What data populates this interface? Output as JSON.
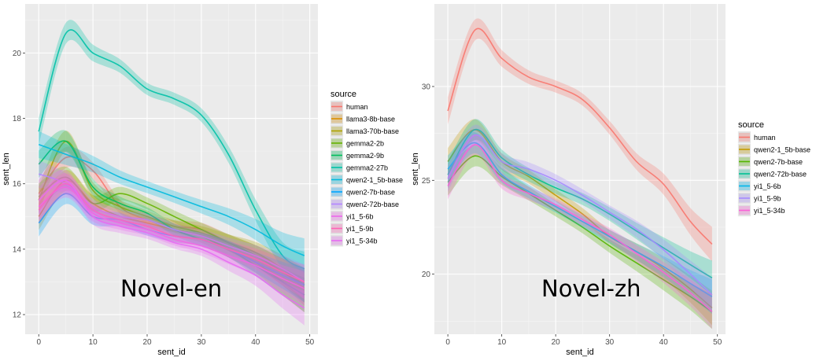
{
  "chart_data": [
    {
      "type": "line",
      "title": "",
      "overlay_label": "Novel-en",
      "xlabel": "sent_id",
      "ylabel": "sent_len",
      "xlim": [
        -2.5,
        51.5
      ],
      "ylim": [
        11.4,
        21.5
      ],
      "x_ticks": [
        0,
        10,
        20,
        30,
        40,
        50
      ],
      "y_ticks": [
        12,
        14,
        16,
        18,
        20
      ],
      "grid": true,
      "legend_title": "source",
      "legend_position": "right",
      "x": [
        0,
        5,
        10,
        15,
        20,
        25,
        30,
        35,
        40,
        45,
        49
      ],
      "series": [
        {
          "name": "human",
          "color": "#F8766D",
          "values": [
            15.7,
            16.8,
            16.4,
            15.3,
            14.9,
            14.7,
            14.6,
            14.2,
            13.8,
            13.3,
            12.8
          ]
        },
        {
          "name": "llama3-8b-base",
          "color": "#DB8E00",
          "values": [
            15.0,
            16.1,
            15.4,
            15.0,
            14.8,
            14.6,
            14.4,
            14.0,
            13.6,
            13.0,
            12.6
          ]
        },
        {
          "name": "llama3-70b-base",
          "color": "#AEA200",
          "values": [
            15.5,
            17.3,
            15.8,
            15.3,
            15.0,
            14.7,
            14.5,
            14.2,
            13.9,
            13.4,
            12.9
          ]
        },
        {
          "name": "gemma2-2b",
          "color": "#64B200",
          "values": [
            15.6,
            16.2,
            15.4,
            15.7,
            15.4,
            15.0,
            14.6,
            14.2,
            13.8,
            13.3,
            12.9
          ]
        },
        {
          "name": "gemma2-9b",
          "color": "#00BD5C",
          "values": [
            16.6,
            17.3,
            15.9,
            15.4,
            15.1,
            14.6,
            14.3,
            14.0,
            13.5,
            13.0,
            12.6
          ]
        },
        {
          "name": "gemma2-27b",
          "color": "#00C1A7",
          "values": [
            17.6,
            20.6,
            20.0,
            19.6,
            18.9,
            18.6,
            18.1,
            16.9,
            15.2,
            13.8,
            13.4
          ]
        },
        {
          "name": "qwen2-1_5b-base",
          "color": "#00BADE",
          "values": [
            17.2,
            16.9,
            16.6,
            16.2,
            15.9,
            15.6,
            15.3,
            15.0,
            14.6,
            14.1,
            13.8
          ]
        },
        {
          "name": "qwen2-7b-base",
          "color": "#00A6FF",
          "values": [
            14.8,
            15.7,
            15.0,
            14.9,
            14.6,
            14.4,
            14.3,
            14.0,
            13.6,
            13.2,
            12.9
          ]
        },
        {
          "name": "qwen2-72b-base",
          "color": "#B385FF",
          "values": [
            16.3,
            16.0,
            15.3,
            15.0,
            14.9,
            14.6,
            14.4,
            14.1,
            13.8,
            13.4,
            13.0
          ]
        },
        {
          "name": "yi1_5-6b",
          "color": "#EF67EB",
          "values": [
            15.3,
            15.9,
            15.1,
            14.8,
            14.6,
            14.3,
            14.1,
            13.8,
            13.5,
            13.1,
            12.8
          ]
        },
        {
          "name": "yi1_5-9b",
          "color": "#FF63B6",
          "values": [
            15.2,
            16.0,
            15.2,
            14.9,
            14.7,
            14.4,
            14.3,
            14.0,
            13.7,
            13.3,
            13.0
          ]
        },
        {
          "name": "yi1_5-34b",
          "color": "#E76BF3",
          "values": [
            15.5,
            16.1,
            15.0,
            14.7,
            14.5,
            14.2,
            14.0,
            13.6,
            13.2,
            12.6,
            12.2
          ]
        }
      ]
    },
    {
      "type": "line",
      "title": "",
      "overlay_label": "Novel-zh",
      "xlabel": "sent_id",
      "ylabel": "sent_len",
      "xlim": [
        -2.5,
        51.5
      ],
      "ylim": [
        16.8,
        34.4
      ],
      "x_ticks": [
        0,
        10,
        20,
        30,
        40,
        50
      ],
      "y_ticks": [
        20,
        25,
        30
      ],
      "grid": true,
      "legend_title": "source",
      "legend_position": "right",
      "x": [
        0,
        5,
        10,
        15,
        20,
        25,
        30,
        35,
        40,
        45,
        49
      ],
      "series": [
        {
          "name": "human",
          "color": "#F8766D",
          "values": [
            28.7,
            33.0,
            31.5,
            30.5,
            30.0,
            29.3,
            27.8,
            26.0,
            24.8,
            22.8,
            21.6
          ]
        },
        {
          "name": "qwen2-1_5b-base",
          "color": "#C49A00",
          "values": [
            26.0,
            27.7,
            26.0,
            25.2,
            24.2,
            23.2,
            22.0,
            21.2,
            20.3,
            19.2,
            18.2
          ]
        },
        {
          "name": "qwen2-7b-base",
          "color": "#53B400",
          "values": [
            24.9,
            26.3,
            25.2,
            24.3,
            23.4,
            22.5,
            21.5,
            20.6,
            19.7,
            18.8,
            18.0
          ]
        },
        {
          "name": "qwen2-72b-base",
          "color": "#00C094",
          "values": [
            25.3,
            27.7,
            26.2,
            25.3,
            24.6,
            24.0,
            23.2,
            22.3,
            21.4,
            20.5,
            19.8
          ]
        },
        {
          "name": "yi1_5-6b",
          "color": "#00B6EB",
          "values": [
            25.6,
            27.0,
            25.3,
            24.4,
            23.6,
            22.8,
            22.0,
            21.2,
            20.4,
            19.5,
            18.8
          ]
        },
        {
          "name": "yi1_5-9b",
          "color": "#A58AFF",
          "values": [
            25.1,
            27.4,
            26.0,
            25.6,
            25.0,
            24.2,
            23.3,
            22.4,
            21.3,
            20.0,
            18.9
          ]
        },
        {
          "name": "yi1_5-34b",
          "color": "#FB61D7",
          "values": [
            24.7,
            26.9,
            25.0,
            24.3,
            23.7,
            22.9,
            22.1,
            21.1,
            20.1,
            19.0,
            18.0
          ]
        }
      ]
    }
  ]
}
